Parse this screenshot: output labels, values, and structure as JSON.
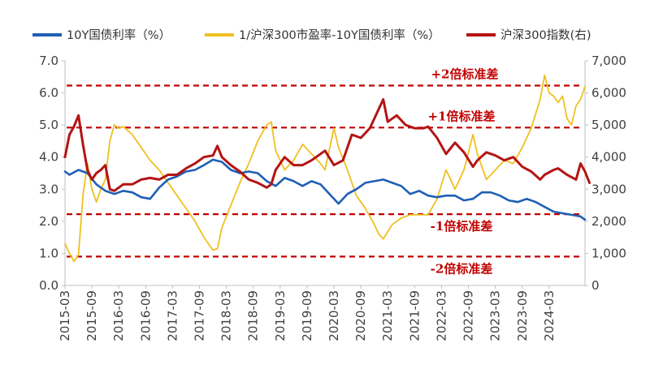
{
  "chart_data": {
    "type": "line",
    "title": "",
    "xlabel": "",
    "ylabel": "",
    "ylim_left": [
      0,
      7
    ],
    "ylim_right": [
      0,
      7000
    ],
    "yticks_left": [
      "0.0",
      "1.0",
      "2.0",
      "3.0",
      "4.0",
      "5.0",
      "6.0",
      "7.0"
    ],
    "yticks_right": [
      "0",
      "1,000",
      "2,000",
      "3,000",
      "4,000",
      "5,000",
      "6,000",
      "7,000"
    ],
    "xticks": [
      "2015-03",
      "2015-09",
      "2016-03",
      "2016-09",
      "2017-03",
      "2017-09",
      "2018-03",
      "2018-09",
      "2019-03",
      "2019-09",
      "2020-03",
      "2020-09",
      "2021-03",
      "2021-09",
      "2022-03",
      "2022-09",
      "2023-03",
      "2023-09",
      "2024-03"
    ],
    "x_range": [
      "2015-03",
      "2024-11"
    ],
    "legend_position": "top",
    "grid": false,
    "series": [
      {
        "name": "10Y国债利率（%）",
        "axis": "left",
        "color": "#1f5fb4",
        "points": [
          [
            "2015-03",
            3.55
          ],
          [
            "2015-04",
            3.45
          ],
          [
            "2015-06",
            3.6
          ],
          [
            "2015-08",
            3.5
          ],
          [
            "2015-10",
            3.15
          ],
          [
            "2015-12",
            2.95
          ],
          [
            "2016-02",
            2.85
          ],
          [
            "2016-04",
            2.95
          ],
          [
            "2016-06",
            2.9
          ],
          [
            "2016-08",
            2.75
          ],
          [
            "2016-10",
            2.7
          ],
          [
            "2016-12",
            3.05
          ],
          [
            "2017-02",
            3.3
          ],
          [
            "2017-04",
            3.4
          ],
          [
            "2017-06",
            3.55
          ],
          [
            "2017-08",
            3.6
          ],
          [
            "2017-10",
            3.75
          ],
          [
            "2017-12",
            3.92
          ],
          [
            "2018-02",
            3.85
          ],
          [
            "2018-04",
            3.6
          ],
          [
            "2018-06",
            3.5
          ],
          [
            "2018-08",
            3.55
          ],
          [
            "2018-10",
            3.5
          ],
          [
            "2018-12",
            3.25
          ],
          [
            "2019-02",
            3.1
          ],
          [
            "2019-04",
            3.35
          ],
          [
            "2019-06",
            3.25
          ],
          [
            "2019-08",
            3.1
          ],
          [
            "2019-10",
            3.25
          ],
          [
            "2019-12",
            3.15
          ],
          [
            "2020-02",
            2.85
          ],
          [
            "2020-04",
            2.55
          ],
          [
            "2020-06",
            2.85
          ],
          [
            "2020-08",
            3.0
          ],
          [
            "2020-10",
            3.2
          ],
          [
            "2020-12",
            3.25
          ],
          [
            "2021-02",
            3.3
          ],
          [
            "2021-04",
            3.2
          ],
          [
            "2021-06",
            3.1
          ],
          [
            "2021-08",
            2.85
          ],
          [
            "2021-10",
            2.95
          ],
          [
            "2021-12",
            2.8
          ],
          [
            "2022-02",
            2.75
          ],
          [
            "2022-04",
            2.8
          ],
          [
            "2022-06",
            2.8
          ],
          [
            "2022-08",
            2.65
          ],
          [
            "2022-10",
            2.7
          ],
          [
            "2022-12",
            2.9
          ],
          [
            "2023-02",
            2.9
          ],
          [
            "2023-04",
            2.8
          ],
          [
            "2023-06",
            2.65
          ],
          [
            "2023-08",
            2.6
          ],
          [
            "2023-10",
            2.7
          ],
          [
            "2023-12",
            2.6
          ],
          [
            "2024-02",
            2.45
          ],
          [
            "2024-04",
            2.3
          ],
          [
            "2024-06",
            2.25
          ],
          [
            "2024-08",
            2.2
          ],
          [
            "2024-10",
            2.15
          ],
          [
            "2024-11",
            2.05
          ]
        ]
      },
      {
        "name": "1/沪深300市盈率-10Y国债利率（%）",
        "axis": "left",
        "color": "#f0c020",
        "points": [
          [
            "2015-03",
            1.3
          ],
          [
            "2015-04",
            1.0
          ],
          [
            "2015-05",
            0.75
          ],
          [
            "2015-06",
            0.95
          ],
          [
            "2015-07",
            2.8
          ],
          [
            "2015-08",
            3.8
          ],
          [
            "2015-09",
            3.0
          ],
          [
            "2015-10",
            2.6
          ],
          [
            "2015-11",
            3.0
          ],
          [
            "2015-12",
            3.3
          ],
          [
            "2016-01",
            4.5
          ],
          [
            "2016-02",
            5.0
          ],
          [
            "2016-03",
            4.9
          ],
          [
            "2016-04",
            4.95
          ],
          [
            "2016-06",
            4.7
          ],
          [
            "2016-08",
            4.3
          ],
          [
            "2016-10",
            3.9
          ],
          [
            "2016-12",
            3.6
          ],
          [
            "2017-02",
            3.2
          ],
          [
            "2017-04",
            2.8
          ],
          [
            "2017-06",
            2.4
          ],
          [
            "2017-08",
            2.0
          ],
          [
            "2017-10",
            1.5
          ],
          [
            "2017-12",
            1.1
          ],
          [
            "2018-01",
            1.15
          ],
          [
            "2018-02",
            1.8
          ],
          [
            "2018-04",
            2.5
          ],
          [
            "2018-06",
            3.2
          ],
          [
            "2018-08",
            3.8
          ],
          [
            "2018-10",
            4.5
          ],
          [
            "2018-12",
            5.0
          ],
          [
            "2019-01",
            5.1
          ],
          [
            "2019-02",
            4.2
          ],
          [
            "2019-04",
            3.6
          ],
          [
            "2019-06",
            3.9
          ],
          [
            "2019-08",
            4.4
          ],
          [
            "2019-10",
            4.1
          ],
          [
            "2019-12",
            3.8
          ],
          [
            "2020-01",
            3.6
          ],
          [
            "2020-03",
            4.9
          ],
          [
            "2020-04",
            4.3
          ],
          [
            "2020-06",
            3.6
          ],
          [
            "2020-08",
            2.8
          ],
          [
            "2020-10",
            2.4
          ],
          [
            "2020-12",
            1.9
          ],
          [
            "2021-01",
            1.6
          ],
          [
            "2021-02",
            1.45
          ],
          [
            "2021-04",
            1.9
          ],
          [
            "2021-06",
            2.1
          ],
          [
            "2021-08",
            2.2
          ],
          [
            "2021-10",
            2.2
          ],
          [
            "2021-12",
            2.2
          ],
          [
            "2022-02",
            2.7
          ],
          [
            "2022-04",
            3.6
          ],
          [
            "2022-06",
            3.0
          ],
          [
            "2022-08",
            3.6
          ],
          [
            "2022-10",
            4.7
          ],
          [
            "2022-11",
            4.1
          ],
          [
            "2023-01",
            3.3
          ],
          [
            "2023-03",
            3.6
          ],
          [
            "2023-05",
            3.9
          ],
          [
            "2023-07",
            3.8
          ],
          [
            "2023-09",
            4.3
          ],
          [
            "2023-11",
            4.9
          ],
          [
            "2024-01",
            5.8
          ],
          [
            "2024-02",
            6.55
          ],
          [
            "2024-03",
            6.0
          ],
          [
            "2024-04",
            5.9
          ],
          [
            "2024-05",
            5.7
          ],
          [
            "2024-06",
            5.9
          ],
          [
            "2024-07",
            5.2
          ],
          [
            "2024-08",
            5.0
          ],
          [
            "2024-09",
            5.6
          ],
          [
            "2024-10",
            5.8
          ],
          [
            "2024-11",
            6.2
          ]
        ]
      },
      {
        "name": "沪深300指数(右)",
        "axis": "right",
        "color": "#b41414",
        "points": [
          [
            "2015-03",
            4000
          ],
          [
            "2015-04",
            4700
          ],
          [
            "2015-05",
            4950
          ],
          [
            "2015-06",
            5300
          ],
          [
            "2015-07",
            4400
          ],
          [
            "2015-08",
            3600
          ],
          [
            "2015-09",
            3300
          ],
          [
            "2015-10",
            3500
          ],
          [
            "2015-11",
            3600
          ],
          [
            "2015-12",
            3750
          ],
          [
            "2016-01",
            3000
          ],
          [
            "2016-02",
            2950
          ],
          [
            "2016-04",
            3150
          ],
          [
            "2016-06",
            3150
          ],
          [
            "2016-08",
            3300
          ],
          [
            "2016-10",
            3350
          ],
          [
            "2016-12",
            3300
          ],
          [
            "2017-02",
            3450
          ],
          [
            "2017-04",
            3450
          ],
          [
            "2017-06",
            3650
          ],
          [
            "2017-08",
            3800
          ],
          [
            "2017-10",
            4000
          ],
          [
            "2017-12",
            4050
          ],
          [
            "2018-01",
            4350
          ],
          [
            "2018-02",
            4000
          ],
          [
            "2018-04",
            3750
          ],
          [
            "2018-06",
            3550
          ],
          [
            "2018-08",
            3300
          ],
          [
            "2018-10",
            3200
          ],
          [
            "2018-12",
            3050
          ],
          [
            "2019-01",
            3150
          ],
          [
            "2019-02",
            3600
          ],
          [
            "2019-04",
            4000
          ],
          [
            "2019-06",
            3750
          ],
          [
            "2019-08",
            3750
          ],
          [
            "2019-10",
            3900
          ],
          [
            "2019-12",
            4100
          ],
          [
            "2020-01",
            4200
          ],
          [
            "2020-03",
            3750
          ],
          [
            "2020-05",
            3900
          ],
          [
            "2020-07",
            4700
          ],
          [
            "2020-09",
            4600
          ],
          [
            "2020-11",
            4900
          ],
          [
            "2020-12",
            5200
          ],
          [
            "2021-01",
            5500
          ],
          [
            "2021-02",
            5800
          ],
          [
            "2021-03",
            5100
          ],
          [
            "2021-05",
            5300
          ],
          [
            "2021-07",
            5000
          ],
          [
            "2021-09",
            4900
          ],
          [
            "2021-11",
            4900
          ],
          [
            "2021-12",
            4950
          ],
          [
            "2022-02",
            4600
          ],
          [
            "2022-04",
            4100
          ],
          [
            "2022-06",
            4450
          ],
          [
            "2022-08",
            4150
          ],
          [
            "2022-10",
            3700
          ],
          [
            "2022-11",
            3900
          ],
          [
            "2023-01",
            4150
          ],
          [
            "2023-03",
            4050
          ],
          [
            "2023-05",
            3900
          ],
          [
            "2023-07",
            4000
          ],
          [
            "2023-09",
            3700
          ],
          [
            "2023-11",
            3550
          ],
          [
            "2024-01",
            3300
          ],
          [
            "2024-02",
            3450
          ],
          [
            "2024-04",
            3600
          ],
          [
            "2024-05",
            3650
          ],
          [
            "2024-07",
            3450
          ],
          [
            "2024-09",
            3300
          ],
          [
            "2024-10",
            3800
          ],
          [
            "2024-11",
            3550
          ],
          [
            "2024-12",
            3200
          ]
        ]
      }
    ],
    "reference_lines": [
      {
        "label": "+2倍标准差",
        "value": 6.23,
        "axis": "left",
        "color": "#c00000"
      },
      {
        "label": "+1倍标准差",
        "value": 4.92,
        "axis": "left",
        "color": "#c00000"
      },
      {
        "label": "-1倍标准差",
        "value": 2.22,
        "axis": "left",
        "color": "#c00000"
      },
      {
        "label": "-2倍标准差",
        "value": 0.9,
        "axis": "left",
        "color": "#c00000"
      }
    ]
  }
}
